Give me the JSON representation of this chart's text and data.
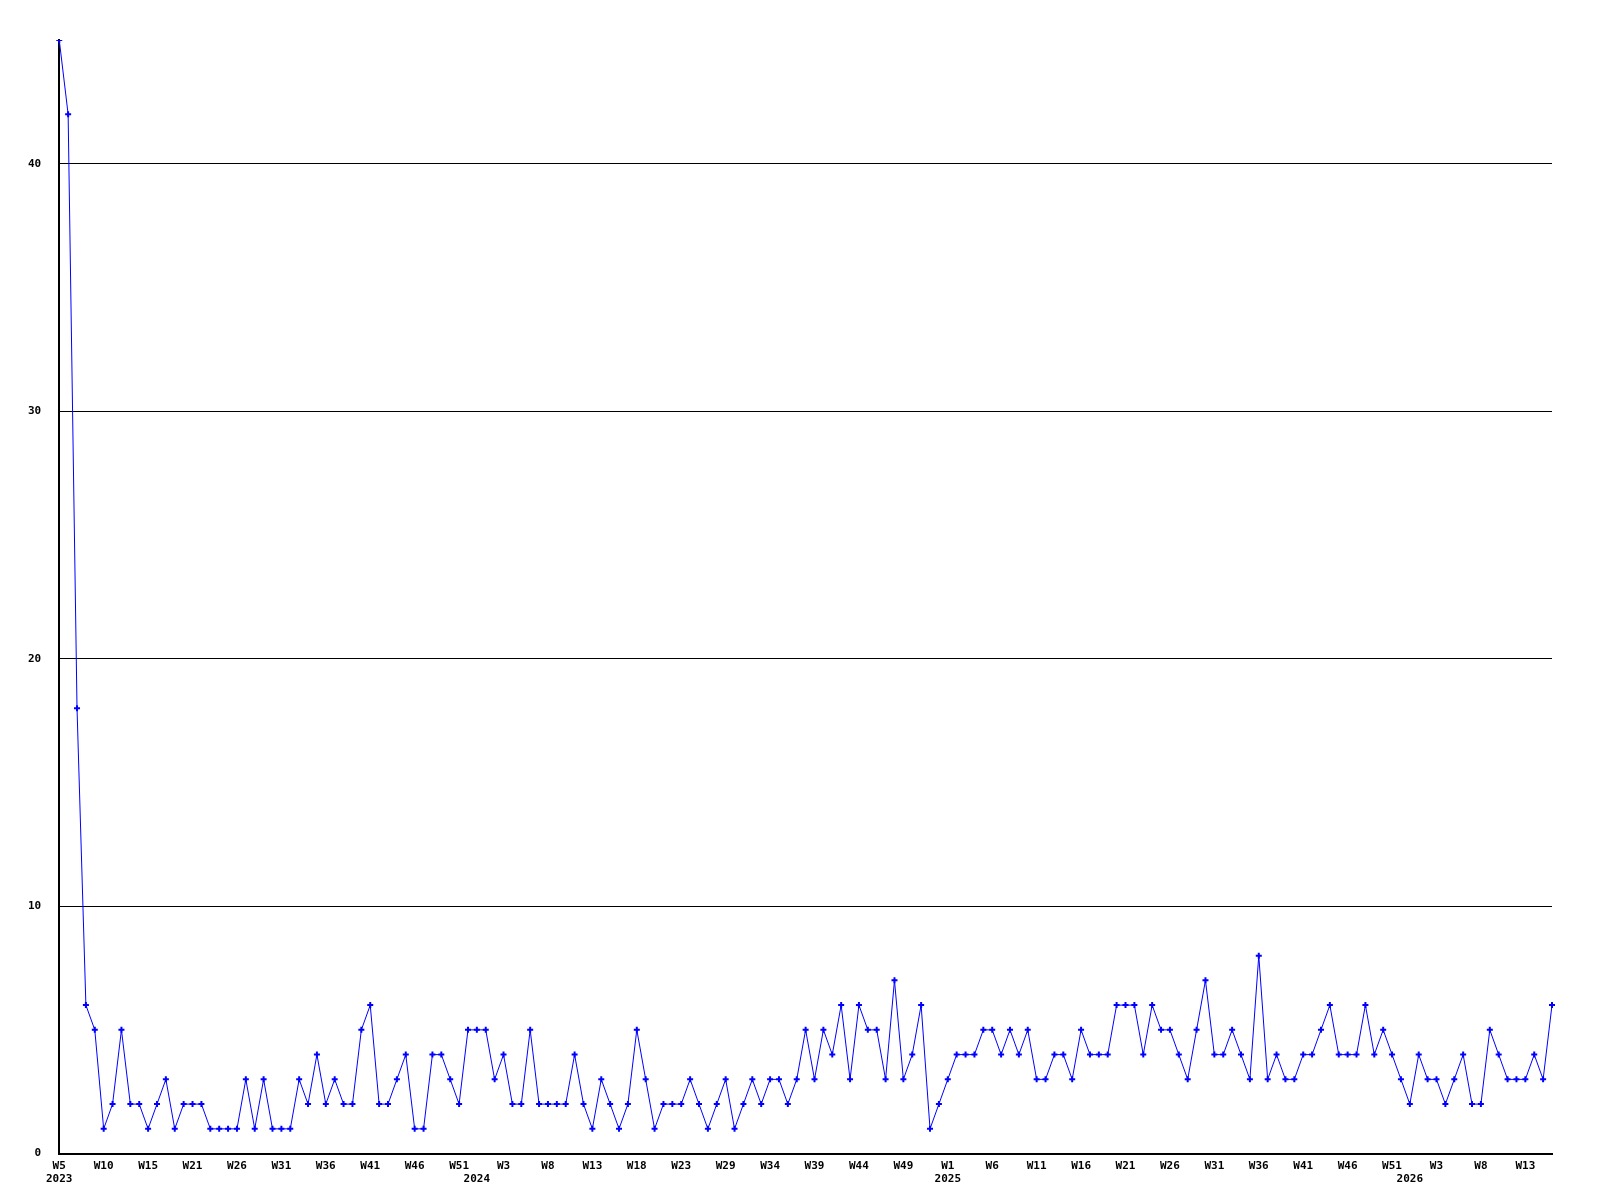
{
  "chart_data": {
    "type": "line",
    "categories": [
      "W5\n2023",
      null,
      null,
      null,
      null,
      "W10",
      null,
      null,
      null,
      null,
      "W15",
      null,
      null,
      null,
      null,
      "W21",
      null,
      null,
      null,
      null,
      "W26",
      null,
      null,
      null,
      null,
      "W31",
      null,
      null,
      null,
      null,
      "W36",
      null,
      null,
      null,
      null,
      "W41",
      null,
      null,
      null,
      null,
      "W46",
      null,
      null,
      null,
      null,
      "W51",
      null,
      "\n2024",
      null,
      null,
      "W3",
      null,
      null,
      null,
      null,
      "W8",
      null,
      null,
      null,
      null,
      "W13",
      null,
      null,
      null,
      null,
      "W18",
      null,
      null,
      null,
      null,
      "W23",
      null,
      null,
      null,
      null,
      "W29",
      null,
      null,
      null,
      null,
      "W34",
      null,
      null,
      null,
      null,
      "W39",
      null,
      null,
      null,
      null,
      "W44",
      null,
      null,
      null,
      null,
      "W49",
      null,
      null,
      null,
      null,
      "W1\n2025",
      null,
      null,
      null,
      null,
      "W6",
      null,
      null,
      null,
      null,
      "W11",
      null,
      null,
      null,
      null,
      "W16",
      null,
      null,
      null,
      null,
      "W21",
      null,
      null,
      null,
      null,
      "W26",
      null,
      null,
      null,
      null,
      "W31",
      null,
      null,
      null,
      null,
      "W36",
      null,
      null,
      null,
      null,
      "W41",
      null,
      null,
      null,
      null,
      "W46",
      null,
      null,
      null,
      null,
      "W51",
      null,
      "\n2026",
      null,
      null,
      "W3",
      null,
      null,
      null,
      null,
      "W8",
      null,
      null,
      null,
      null,
      "W13",
      null,
      null,
      null
    ],
    "series": [
      {
        "color": "#0000ff",
        "values": [
          45,
          42,
          18,
          6,
          5,
          1,
          2,
          5,
          2,
          2,
          1,
          2,
          3,
          1,
          2,
          2,
          2,
          1,
          1,
          1,
          1,
          3,
          1,
          3,
          1,
          1,
          1,
          3,
          2,
          4,
          2,
          3,
          2,
          2,
          5,
          6,
          2,
          2,
          3,
          4,
          1,
          1,
          4,
          4,
          3,
          2,
          5,
          5,
          5,
          3,
          4,
          2,
          2,
          5,
          2,
          2,
          2,
          2,
          4,
          2,
          1,
          3,
          2,
          1,
          2,
          5,
          3,
          1,
          2,
          2,
          2,
          3,
          2,
          1,
          2,
          3,
          1,
          2,
          3,
          2,
          3,
          3,
          2,
          3,
          5,
          3,
          5,
          4,
          6,
          3,
          6,
          5,
          5,
          3,
          7,
          3,
          4,
          6,
          1,
          2,
          3,
          4,
          4,
          4,
          5,
          5,
          4,
          5,
          4,
          5,
          3,
          3,
          4,
          4,
          3,
          5,
          4,
          4,
          4,
          6,
          6,
          6,
          4,
          6,
          5,
          5,
          4,
          3,
          5,
          7,
          4,
          4,
          5,
          4,
          3,
          8,
          3,
          4,
          3,
          3,
          4,
          4,
          5,
          6,
          4,
          4,
          4,
          6,
          4,
          5,
          4,
          3,
          2,
          4,
          3,
          3,
          2,
          3,
          4,
          2,
          2,
          5,
          4,
          3,
          3,
          3,
          4,
          3,
          6
        ]
      }
    ],
    "ylim": [
      0,
      45
    ],
    "yticks": [
      0,
      10,
      20,
      30,
      40
    ],
    "grid": "y",
    "legend": false,
    "marker": "cross",
    "line_style": "solid"
  }
}
